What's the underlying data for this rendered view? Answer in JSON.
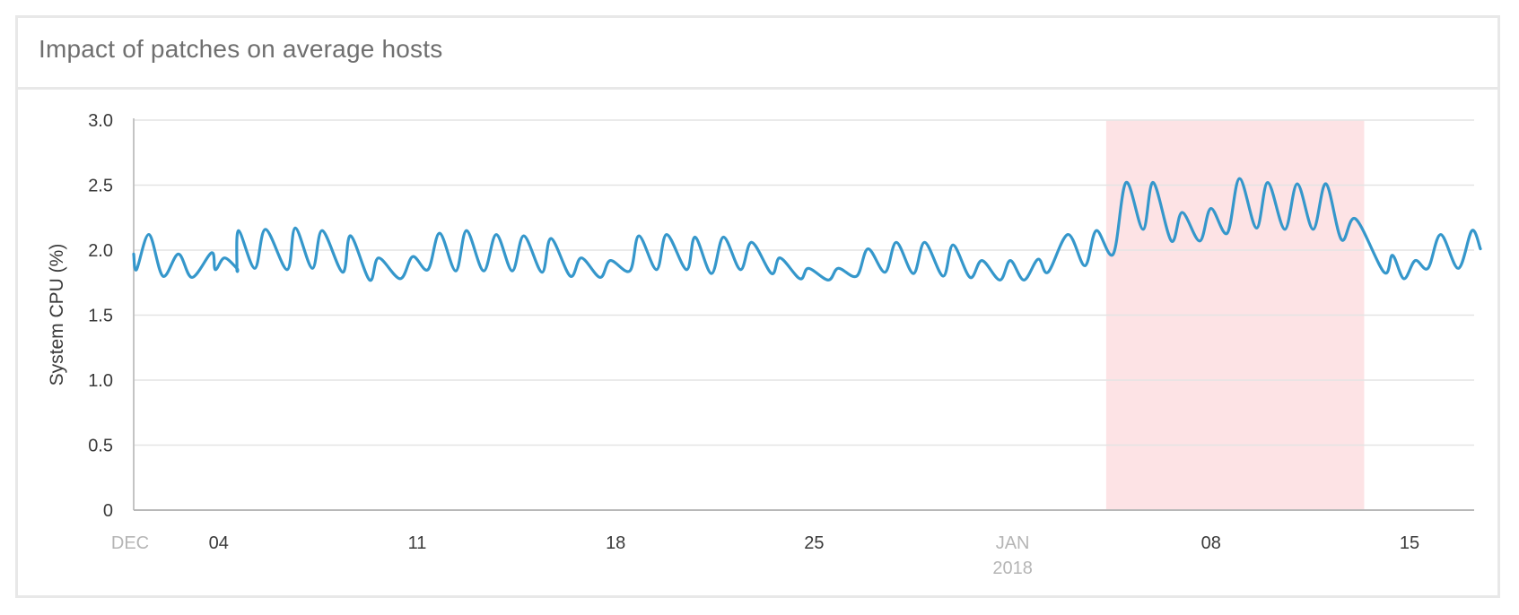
{
  "card": {
    "title": "Impact of patches on average hosts"
  },
  "chart_data": {
    "type": "line",
    "title": "Impact of patches on average hosts",
    "xlabel": "",
    "ylabel": "System CPU (%)",
    "ylim": [
      0,
      3.0
    ],
    "yticks": [
      "0",
      "0.5",
      "1.0",
      "1.5",
      "2.0",
      "2.5",
      "3.0"
    ],
    "grid": true,
    "x_unit": "days since Dec 1, 2017",
    "xlim": [
      0,
      47.2
    ],
    "xticks": [
      {
        "day": 0,
        "label": "DEC",
        "sub": "",
        "month": true
      },
      {
        "day": 3,
        "label": "04",
        "sub": "",
        "month": false
      },
      {
        "day": 10,
        "label": "11",
        "sub": "",
        "month": false
      },
      {
        "day": 17,
        "label": "18",
        "sub": "",
        "month": false
      },
      {
        "day": 24,
        "label": "25",
        "sub": "",
        "month": false
      },
      {
        "day": 31,
        "label": "JAN",
        "sub": "2018",
        "month": true
      },
      {
        "day": 38,
        "label": "08",
        "sub": "",
        "month": false
      },
      {
        "day": 45,
        "label": "15",
        "sub": "",
        "month": false
      }
    ],
    "highlight_band": {
      "from_day": 34.3,
      "to_day": 43.4,
      "color": "#fde3e5",
      "label": ""
    },
    "series": [
      {
        "name": "System CPU (%)",
        "color": "#3597cb",
        "points": [
          [
            0.0,
            1.97
          ],
          [
            0.1,
            1.85
          ],
          [
            0.54,
            2.12
          ],
          [
            1.03,
            1.8
          ],
          [
            1.58,
            1.97
          ],
          [
            2.06,
            1.79
          ],
          [
            2.75,
            1.98
          ],
          [
            2.88,
            1.85
          ],
          [
            3.2,
            1.94
          ],
          [
            3.64,
            1.86
          ],
          [
            3.64,
            1.86
          ],
          [
            3.7,
            2.15
          ],
          [
            4.27,
            1.86
          ],
          [
            4.65,
            2.16
          ],
          [
            5.41,
            1.85
          ],
          [
            5.7,
            2.17
          ],
          [
            6.3,
            1.86
          ],
          [
            6.65,
            2.15
          ],
          [
            7.37,
            1.83
          ],
          [
            7.65,
            2.11
          ],
          [
            8.32,
            1.77
          ],
          [
            8.64,
            1.94
          ],
          [
            9.4,
            1.78
          ],
          [
            9.84,
            1.95
          ],
          [
            10.38,
            1.85
          ],
          [
            10.79,
            2.13
          ],
          [
            11.36,
            1.84
          ],
          [
            11.74,
            2.15
          ],
          [
            12.34,
            1.84
          ],
          [
            12.79,
            2.12
          ],
          [
            13.35,
            1.84
          ],
          [
            13.76,
            2.11
          ],
          [
            14.4,
            1.83
          ],
          [
            14.72,
            2.09
          ],
          [
            15.4,
            1.8
          ],
          [
            15.79,
            1.94
          ],
          [
            16.45,
            1.79
          ],
          [
            16.81,
            1.92
          ],
          [
            17.5,
            1.84
          ],
          [
            17.82,
            2.11
          ],
          [
            18.44,
            1.85
          ],
          [
            18.8,
            2.12
          ],
          [
            19.5,
            1.85
          ],
          [
            19.8,
            2.1
          ],
          [
            20.38,
            1.82
          ],
          [
            20.8,
            2.1
          ],
          [
            21.4,
            1.85
          ],
          [
            21.8,
            2.06
          ],
          [
            22.5,
            1.82
          ],
          [
            22.8,
            1.94
          ],
          [
            23.5,
            1.78
          ],
          [
            23.8,
            1.86
          ],
          [
            24.5,
            1.77
          ],
          [
            24.85,
            1.86
          ],
          [
            25.5,
            1.8
          ],
          [
            25.9,
            2.01
          ],
          [
            26.5,
            1.83
          ],
          [
            26.9,
            2.06
          ],
          [
            27.5,
            1.82
          ],
          [
            27.9,
            2.06
          ],
          [
            28.55,
            1.8
          ],
          [
            28.9,
            2.04
          ],
          [
            29.5,
            1.79
          ],
          [
            29.92,
            1.92
          ],
          [
            30.55,
            1.77
          ],
          [
            30.92,
            1.92
          ],
          [
            31.4,
            1.77
          ],
          [
            31.9,
            1.93
          ],
          [
            32.25,
            1.83
          ],
          [
            32.95,
            2.12
          ],
          [
            33.55,
            1.88
          ],
          [
            33.95,
            2.15
          ],
          [
            34.55,
            1.97
          ],
          [
            35.0,
            2.52
          ],
          [
            35.6,
            2.16
          ],
          [
            35.96,
            2.52
          ],
          [
            36.6,
            2.07
          ],
          [
            36.98,
            2.29
          ],
          [
            37.6,
            2.07
          ],
          [
            37.99,
            2.32
          ],
          [
            38.57,
            2.13
          ],
          [
            39.0,
            2.55
          ],
          [
            39.6,
            2.17
          ],
          [
            40.0,
            2.52
          ],
          [
            40.6,
            2.16
          ],
          [
            41.04,
            2.51
          ],
          [
            41.6,
            2.16
          ],
          [
            42.05,
            2.51
          ],
          [
            42.6,
            2.08
          ],
          [
            43.1,
            2.24
          ],
          [
            44.1,
            1.83
          ],
          [
            44.4,
            1.96
          ],
          [
            44.8,
            1.78
          ],
          [
            45.2,
            1.92
          ],
          [
            45.65,
            1.86
          ],
          [
            46.1,
            2.12
          ],
          [
            46.72,
            1.86
          ],
          [
            47.2,
            2.15
          ],
          [
            47.5,
            2.01
          ]
        ]
      }
    ]
  }
}
